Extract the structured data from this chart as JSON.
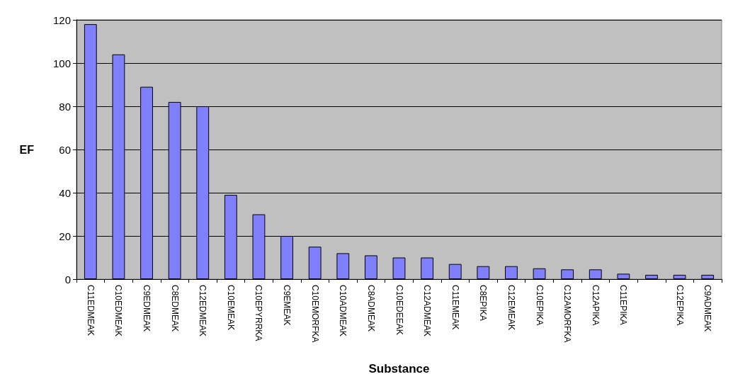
{
  "chart_data": {
    "type": "bar",
    "xlabel": "Substance",
    "ylabel": "EF",
    "categories": [
      "C11EDMEAK",
      "C10EDMEAK",
      "C9EDMEAK",
      "C8EDMEAK",
      "C12EDMEAK",
      "C10EMEAK",
      "C10EPYRRKA",
      "C9EMEAK",
      "C10EMORFKA",
      "C10ADMEAK",
      "C8ADMEAK",
      "C10EDEEAK",
      "C12ADMEAK",
      "C11EMEAK",
      "C8EPIKA",
      "C12EMEAK",
      "C10EPIKA",
      "C12AMORFKA",
      "C12APIKA",
      "C11EPIKA",
      null,
      "C12EPIKA",
      "C9ADMEAK"
    ],
    "values": [
      118,
      104,
      89,
      82,
      80,
      39,
      30,
      20,
      15,
      12,
      11,
      10,
      10,
      7,
      6,
      6,
      5,
      4.5,
      4.5,
      2.5,
      2,
      2,
      2
    ],
    "color": "#8080ff",
    "ylim": [
      0,
      120
    ],
    "yticks": [
      0,
      20,
      40,
      60,
      80,
      100,
      120
    ],
    "grid": "y"
  }
}
